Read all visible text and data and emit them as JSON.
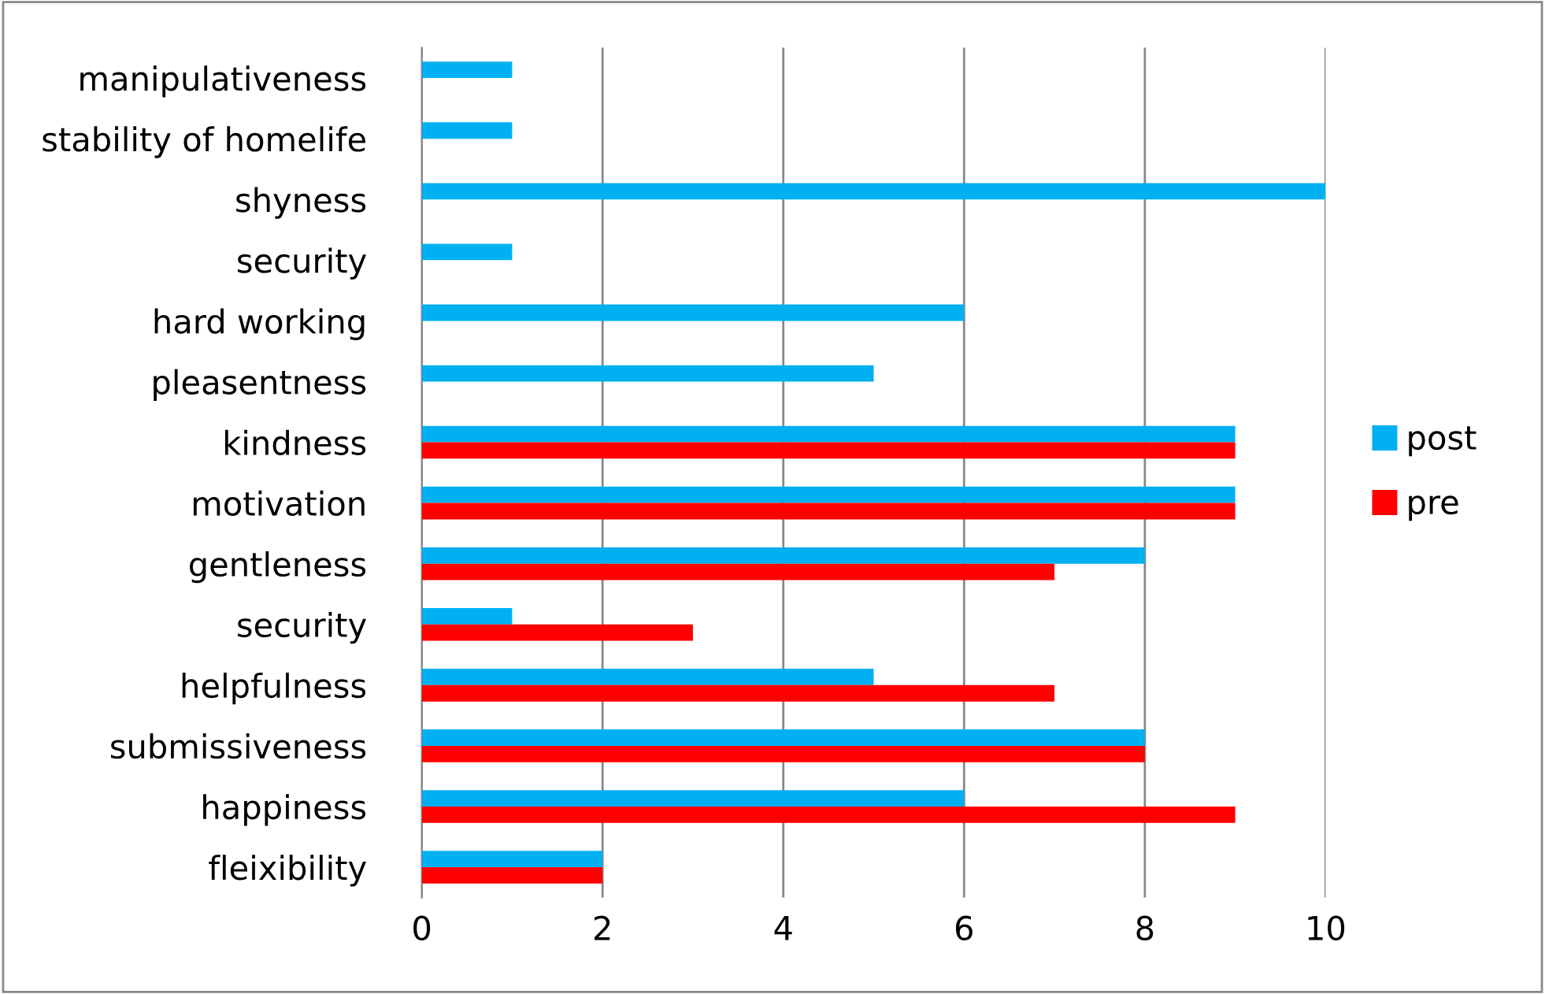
{
  "chart_data": {
    "type": "bar",
    "orientation": "horizontal",
    "categories": [
      "manipulativeness",
      "stability of homelife",
      "shyness",
      "security",
      "hard working",
      "pleasentness",
      "kindness",
      "motivation",
      "gentleness",
      "security",
      "helpfulness",
      "submissiveness",
      "happiness",
      "fleixibility"
    ],
    "series": [
      {
        "name": "post",
        "color": "#00b0f0",
        "values": [
          1,
          1,
          10,
          1,
          6,
          5,
          9,
          9,
          8,
          1,
          5,
          8,
          6,
          2
        ]
      },
      {
        "name": "pre",
        "color": "#ff0000",
        "values": [
          null,
          null,
          null,
          null,
          null,
          null,
          9,
          9,
          7,
          3,
          7,
          8,
          9,
          2
        ]
      }
    ],
    "xlim": [
      0,
      10
    ],
    "xticks": [
      0,
      2,
      4,
      6,
      8,
      10
    ],
    "grid": "x",
    "legend": "right"
  }
}
